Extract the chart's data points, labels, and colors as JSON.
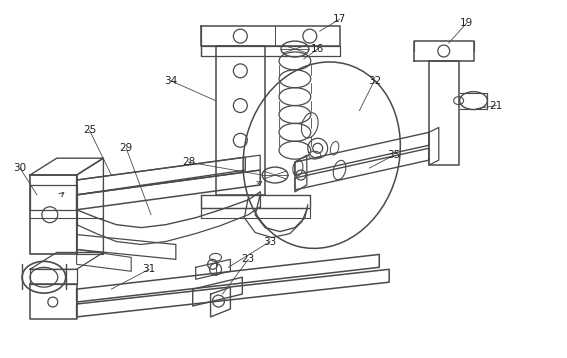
{
  "bg_color": "#ffffff",
  "line_color": "#4a4a4a",
  "line_width": 0.9,
  "label_color": "#222222",
  "label_fontsize": 7.5,
  "fig_width": 5.67,
  "fig_height": 3.58
}
